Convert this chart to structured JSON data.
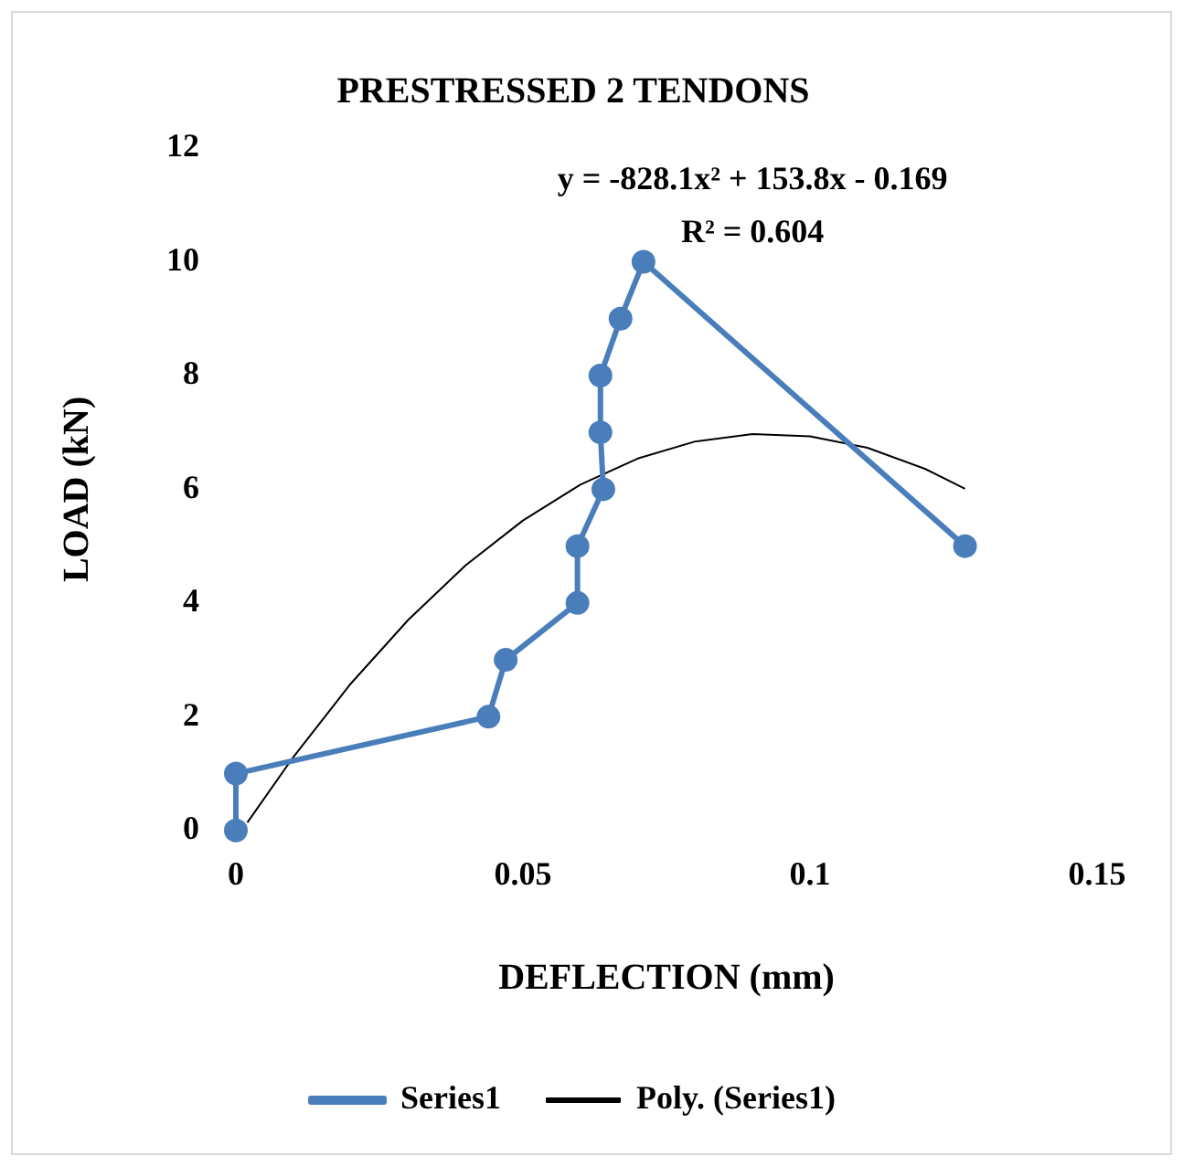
{
  "chart_data": {
    "type": "line",
    "title": "PRESTRESSED 2 TENDONS",
    "xlabel": "DEFLECTION (mm)",
    "ylabel": "LOAD (kN)",
    "series": [
      {
        "name": "Series1",
        "color": "#4a7ebb",
        "marker": "circle",
        "x": [
          0,
          0,
          0.044,
          0.047,
          0.0595,
          0.0595,
          0.064,
          0.0635,
          0.0635,
          0.067,
          0.071,
          0.127
        ],
        "values": [
          0,
          1,
          2,
          3,
          4,
          5,
          6,
          7,
          8,
          9,
          10,
          5
        ]
      },
      {
        "name": "Poly. (Series1)",
        "color": "#000000",
        "marker": "none",
        "x": [
          0.002,
          0.01,
          0.02,
          0.03,
          0.04,
          0.05,
          0.06,
          0.07,
          0.08,
          0.09,
          0.1,
          0.11,
          0.12,
          0.127
        ],
        "values": [
          0.14,
          1.29,
          2.58,
          3.7,
          4.66,
          5.45,
          6.08,
          6.54,
          6.84,
          6.97,
          6.93,
          6.73,
          6.36,
          6.01
        ]
      }
    ],
    "annotations": [
      "y = -828.1x² + 153.8x - 0.169",
      "R² = 0.604"
    ],
    "xlim": [
      0,
      0.15
    ],
    "xticks": [
      0,
      0.05,
      0.1,
      0.15
    ],
    "ylim": [
      0,
      12
    ],
    "yticks": [
      0,
      2,
      4,
      6,
      8,
      10,
      12
    ],
    "grid": false,
    "legend": "bottom"
  }
}
